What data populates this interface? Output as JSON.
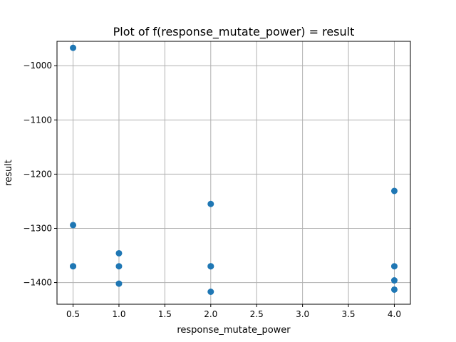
{
  "chart_data": {
    "type": "scatter",
    "title": "Plot of f(response_mutate_power) = result",
    "xlabel": "response_mutate_power",
    "ylabel": "result",
    "xlim": [
      0.325,
      4.175
    ],
    "ylim": [
      -1440,
      -955
    ],
    "xticks": [
      0.5,
      1.0,
      1.5,
      2.0,
      2.5,
      3.0,
      3.5,
      4.0
    ],
    "xtick_labels": [
      "0.5",
      "1.0",
      "1.5",
      "2.0",
      "2.5",
      "3.0",
      "3.5",
      "4.0"
    ],
    "yticks": [
      -1000,
      -1100,
      -1200,
      -1300,
      -1400
    ],
    "ytick_labels": [
      "−1000",
      "−1100",
      "−1200",
      "−1300",
      "−1400"
    ],
    "grid": true,
    "marker_color": "#1f77b4",
    "points": [
      {
        "x": 0.5,
        "y": -967
      },
      {
        "x": 0.5,
        "y": -1294
      },
      {
        "x": 0.5,
        "y": -1370
      },
      {
        "x": 0.5,
        "y": -1370
      },
      {
        "x": 1.0,
        "y": -1346
      },
      {
        "x": 1.0,
        "y": -1370
      },
      {
        "x": 1.0,
        "y": -1402
      },
      {
        "x": 2.0,
        "y": -1255
      },
      {
        "x": 2.0,
        "y": -1370
      },
      {
        "x": 2.0,
        "y": -1370
      },
      {
        "x": 2.0,
        "y": -1417
      },
      {
        "x": 4.0,
        "y": -1231
      },
      {
        "x": 4.0,
        "y": -1370
      },
      {
        "x": 4.0,
        "y": -1396
      },
      {
        "x": 4.0,
        "y": -1413
      }
    ]
  }
}
